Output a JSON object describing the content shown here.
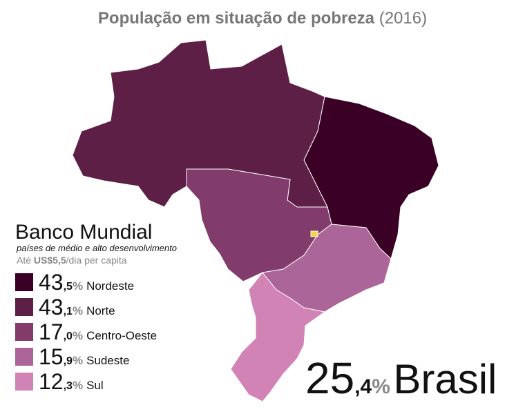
{
  "title": {
    "main": "População em situação de pobreza",
    "year": "(2016)"
  },
  "legend": {
    "title": "Banco Mundial",
    "subtitle": "países de médio e alto desenvolvimento",
    "note": {
      "prefix": "Até",
      "amount": "US$5,5",
      "suffix": "/dia per capita"
    }
  },
  "regions": [
    {
      "name": "Nordeste",
      "value": 43.5,
      "value_label": {
        "integer": "43",
        "decimal": ",5",
        "unit": "%"
      },
      "color": "#3b0026"
    },
    {
      "name": "Norte",
      "value": 43.1,
      "value_label": {
        "integer": "43",
        "decimal": ",1",
        "unit": "%"
      },
      "color": "#5e1f47"
    },
    {
      "name": "Centro-Oeste",
      "value": 17.0,
      "value_label": {
        "integer": "17",
        "decimal": ",0",
        "unit": "%"
      },
      "color": "#823c6c"
    },
    {
      "name": "Sudeste",
      "value": 15.9,
      "value_label": {
        "integer": "15",
        "decimal": ",9",
        "unit": "%"
      },
      "color": "#ac6598"
    },
    {
      "name": "Sul",
      "value": 12.3,
      "value_label": {
        "integer": "12",
        "decimal": ",3",
        "unit": "%"
      },
      "color": "#d283b6"
    }
  ],
  "total": {
    "name": "Brasil",
    "value": 25.4,
    "value_label": {
      "integer": "25",
      "decimal": ",4",
      "unit": "%"
    }
  }
}
